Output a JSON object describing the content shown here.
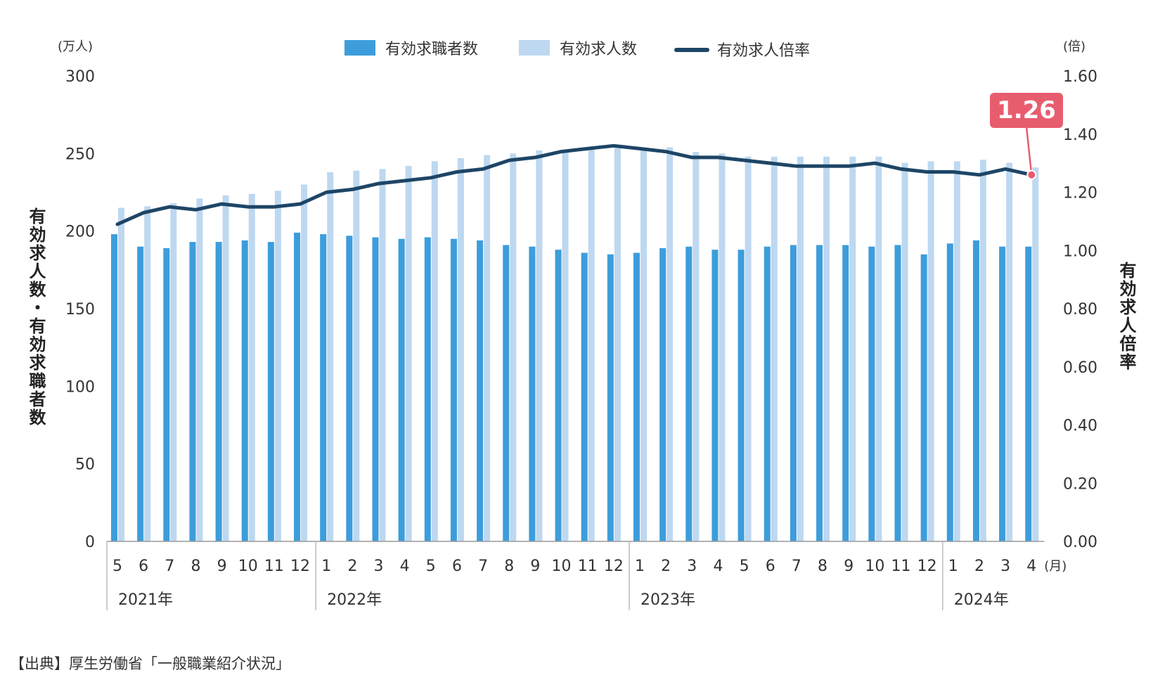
{
  "chart_data": {
    "type": "bar",
    "left_unit": "(万人)",
    "right_unit": "(倍)",
    "month_unit": "(月)",
    "ylabel_left": "有効求人数・有効求職者数",
    "ylabel_right": "有効求人倍率",
    "ylim_left": [
      0,
      300
    ],
    "ylim_right": [
      0,
      1.6
    ],
    "yticks_left": [
      "0",
      "50",
      "100",
      "150",
      "200",
      "250",
      "300"
    ],
    "yticks_right": [
      "0.00",
      "0.20",
      "0.40",
      "0.60",
      "0.80",
      "1.00",
      "1.20",
      "1.40",
      "1.60"
    ],
    "categories": [
      "5",
      "6",
      "7",
      "8",
      "9",
      "10",
      "11",
      "12",
      "1",
      "2",
      "3",
      "4",
      "5",
      "6",
      "7",
      "8",
      "9",
      "10",
      "11",
      "12",
      "1",
      "2",
      "3",
      "4",
      "5",
      "6",
      "7",
      "8",
      "9",
      "10",
      "11",
      "12",
      "1",
      "2",
      "3",
      "4"
    ],
    "years": [
      {
        "label": "2021年",
        "start": 0,
        "end": 7
      },
      {
        "label": "2022年",
        "start": 8,
        "end": 19
      },
      {
        "label": "2023年",
        "start": 20,
        "end": 31
      },
      {
        "label": "2024年",
        "start": 32,
        "end": 35
      }
    ],
    "series": [
      {
        "name": "有効求職者数",
        "type": "bar",
        "axis": "left",
        "color": "#3d9ddb",
        "values": [
          198,
          190,
          189,
          193,
          193,
          194,
          193,
          199,
          198,
          197,
          196,
          195,
          196,
          195,
          194,
          191,
          190,
          188,
          186,
          185,
          186,
          189,
          190,
          188,
          188,
          190,
          191,
          191,
          191,
          190,
          191,
          185,
          192,
          194,
          190,
          190
        ]
      },
      {
        "name": "有効求人数",
        "type": "bar",
        "axis": "left",
        "color": "#bdd8f0",
        "values": [
          215,
          216,
          218,
          221,
          223,
          224,
          226,
          230,
          238,
          239,
          240,
          242,
          245,
          247,
          249,
          250,
          252,
          252,
          253,
          254,
          252,
          254,
          251,
          250,
          248,
          248,
          248,
          248,
          248,
          248,
          244,
          245,
          245,
          246,
          244,
          241
        ]
      },
      {
        "name": "有効求人倍率",
        "type": "line",
        "axis": "right",
        "color": "#1d4566",
        "values": [
          1.09,
          1.13,
          1.15,
          1.14,
          1.16,
          1.15,
          1.15,
          1.16,
          1.2,
          1.21,
          1.23,
          1.24,
          1.25,
          1.27,
          1.28,
          1.31,
          1.32,
          1.34,
          1.35,
          1.36,
          1.35,
          1.34,
          1.32,
          1.32,
          1.31,
          1.3,
          1.29,
          1.29,
          1.29,
          1.3,
          1.28,
          1.27,
          1.27,
          1.26,
          1.28,
          1.26
        ]
      }
    ],
    "callout": {
      "label": "1.26",
      "index": 35,
      "color": "#e85d6e"
    },
    "legend_position": "top-center",
    "grid": false
  },
  "source_text": "【出典】厚生労働省「一般職業紹介状況」"
}
